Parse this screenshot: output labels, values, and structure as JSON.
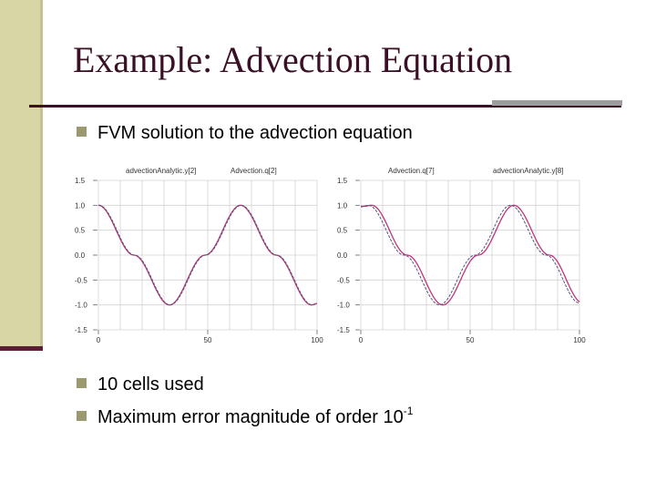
{
  "slide": {
    "title": "Example: Advection Equation",
    "bullets": [
      {
        "text": "FVM solution to the advection equation"
      },
      {
        "text": "10 cells used"
      },
      {
        "text": "Maximum error magnitude of order 10",
        "sup": "-1"
      }
    ],
    "colors": {
      "bar": "#d8d6a4",
      "title": "#3b1026",
      "bullet": "#9b9a6f",
      "analytic": "#c0357c",
      "numerical": "#555577"
    }
  },
  "chart_data": [
    {
      "type": "line",
      "legend": [
        "advectionAnalytic.y[2]",
        "Advection.q[2]"
      ],
      "x_ticks": [
        "0",
        "50",
        "100"
      ],
      "y_ticks": [
        "1.5",
        "1.0",
        "0.5",
        "0.0",
        "-0.5",
        "-1.0",
        "-1.5"
      ],
      "xlim": [
        0,
        100
      ],
      "ylim": [
        -1.5,
        1.5
      ],
      "grid": true,
      "series": [
        {
          "name": "advectionAnalytic.y[2]",
          "function": "cos(2*pi*x/65)",
          "x": [
            0,
            16.25,
            32.5,
            48.75,
            65,
            81.25,
            97.5,
            100
          ],
          "values": [
            1.0,
            0.0,
            -1.0,
            0.0,
            1.0,
            0.0,
            -1.0,
            -0.97
          ]
        },
        {
          "name": "Advection.q[2]",
          "phase_lag": 0.3,
          "x": [
            0,
            16.25,
            32.5,
            48.75,
            65,
            81.25,
            97.5,
            100
          ],
          "values": [
            1.0,
            0.0,
            -1.0,
            0.0,
            1.0,
            0.0,
            -1.0,
            -0.97
          ]
        }
      ]
    },
    {
      "type": "line",
      "legend": [
        "Advection.q[7]",
        "advectionAnalytic.y[8]"
      ],
      "x_ticks": [
        "0",
        "50",
        "100"
      ],
      "y_ticks": [
        "1.5",
        "1.0",
        "0.5",
        "0.0",
        "-0.5",
        "-1.0",
        "-1.5"
      ],
      "xlim": [
        0,
        100
      ],
      "ylim": [
        -1.5,
        1.5
      ],
      "grid": true,
      "series": [
        {
          "name": "Advection.q[7]",
          "phase_lag": 1.5,
          "x": [
            0,
            3.5,
            19.75,
            36,
            52.25,
            68.5,
            84.75,
            100
          ],
          "values": [
            0.98,
            1.0,
            0.0,
            -1.0,
            0.0,
            1.0,
            0.0,
            -0.96
          ]
        },
        {
          "name": "advectionAnalytic.y[8]",
          "function": "cos(2*pi*(x-3.5)/65)",
          "x": [
            0,
            3.5,
            19.75,
            36,
            52.25,
            68.5,
            84.75,
            100
          ],
          "values": [
            0.97,
            1.0,
            0.0,
            -1.0,
            0.0,
            1.0,
            0.0,
            -0.96
          ]
        }
      ]
    }
  ]
}
